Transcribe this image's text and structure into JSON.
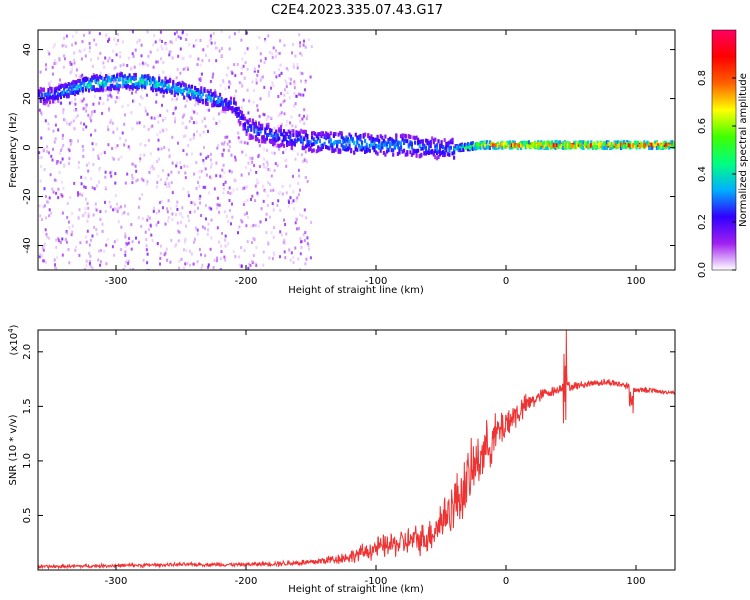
{
  "title": "C2E4.2023.335.07.43.G17",
  "colors": {
    "snr_line": "#ee3333",
    "axis": "#000000",
    "background": "#ffffff",
    "colormap": [
      "#ffffff",
      "#a020f0",
      "#3000ff",
      "#00b0ff",
      "#00ff80",
      "#40ff00",
      "#ffff00",
      "#ff6000",
      "#ff0000",
      "#ff0060"
    ]
  },
  "chart_data": [
    {
      "type": "heatmap",
      "name": "spectrogram",
      "xlabel": "Height of straight line (km)",
      "ylabel": "Frequency (Hz)",
      "xlim": [
        -360,
        130
      ],
      "ylim": [
        -50,
        48
      ],
      "x_ticks": [
        -300,
        -200,
        -100,
        0,
        100
      ],
      "x_tick_labels": [
        "-300",
        "-200",
        "-100",
        "0",
        "100"
      ],
      "y_ticks": [
        -40,
        -20,
        0,
        20,
        40
      ],
      "y_tick_labels": [
        "-40",
        "-20",
        "0",
        "20",
        "40"
      ],
      "colorbar": {
        "label": "Normalized spectral amplitude",
        "range": [
          0,
          1
        ],
        "ticks": [
          0.0,
          0.2,
          0.4,
          0.6,
          0.8
        ],
        "tick_labels": [
          "0.0",
          "0.2",
          "0.4",
          "0.6",
          "0.8"
        ]
      },
      "ridge": {
        "x": [
          -355,
          -340,
          -320,
          -300,
          -280,
          -260,
          -240,
          -220,
          -210,
          -200,
          -180,
          -160,
          -140,
          -120,
          -100,
          -80,
          -60,
          -45,
          -35,
          -20,
          0,
          20,
          40,
          60,
          80,
          100,
          130
        ],
        "freq": [
          21,
          23,
          26,
          27,
          27,
          25,
          22,
          19,
          17,
          8,
          5,
          3,
          2,
          2,
          1,
          1,
          0,
          -1,
          0,
          1,
          1,
          1,
          1,
          1,
          1,
          1,
          1
        ],
        "amplitude": [
          0.3,
          0.35,
          0.45,
          0.45,
          0.45,
          0.4,
          0.4,
          0.35,
          0.3,
          0.3,
          0.3,
          0.3,
          0.35,
          0.4,
          0.35,
          0.35,
          0.3,
          0.3,
          0.5,
          0.8,
          0.85,
          0.9,
          0.95,
          0.95,
          0.9,
          0.9,
          0.9
        ]
      }
    },
    {
      "type": "line",
      "name": "snr",
      "xlabel": "Height of straight line (km)",
      "ylabel": "SNR (10 * v/v)",
      "y_scale_label": "(x10",
      "y_scale_exponent": "4",
      "y_scale_suffix": ")",
      "xlim": [
        -360,
        130
      ],
      "ylim": [
        0,
        2.2
      ],
      "x_ticks": [
        -300,
        -200,
        -100,
        0,
        100
      ],
      "x_tick_labels": [
        "-300",
        "-200",
        "-100",
        "0",
        "100"
      ],
      "y_ticks": [
        0.5,
        1.0,
        1.5,
        2.0
      ],
      "y_tick_labels": [
        "0.5",
        "1.0",
        "1.5",
        "2.0"
      ],
      "grid": false,
      "series": [
        {
          "x": [
            -360,
            -300,
            -250,
            -200,
            -150,
            -120,
            -100,
            -80,
            -60,
            -50,
            -40,
            -30,
            -20,
            -10,
            0,
            10,
            20,
            30,
            40,
            45,
            50,
            60,
            70,
            80,
            90,
            95,
            100,
            110,
            120,
            130
          ],
          "values": [
            0.03,
            0.04,
            0.05,
            0.05,
            0.07,
            0.12,
            0.2,
            0.25,
            0.3,
            0.45,
            0.6,
            0.8,
            1.05,
            1.2,
            1.35,
            1.45,
            1.55,
            1.62,
            1.65,
            1.7,
            1.68,
            1.7,
            1.72,
            1.72,
            1.7,
            1.68,
            1.65,
            1.65,
            1.63,
            1.63
          ],
          "noise": [
            0.02,
            0.02,
            0.02,
            0.02,
            0.04,
            0.07,
            0.12,
            0.15,
            0.18,
            0.25,
            0.3,
            0.35,
            0.3,
            0.25,
            0.2,
            0.15,
            0.1,
            0.06,
            0.05,
            0.05,
            0.05,
            0.04,
            0.04,
            0.04,
            0.04,
            0.05,
            0.03,
            0.03,
            0.02,
            0.02
          ]
        }
      ]
    }
  ]
}
